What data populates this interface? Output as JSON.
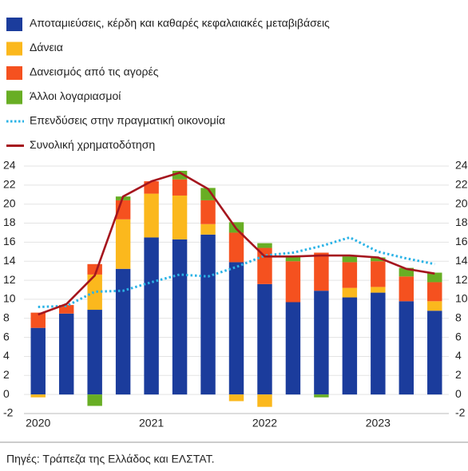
{
  "chart_data": {
    "type": "bar",
    "stacked": true,
    "categories": [
      "2020",
      null,
      null,
      null,
      "2021",
      null,
      null,
      null,
      "2022",
      null,
      null,
      null,
      "2023",
      null,
      null
    ],
    "series": [
      {
        "name": "Αποταμιεύσεις, κέρδη και καθαρές κεφαλαιακές μεταβιβάσεις",
        "color": "#1b3c9c",
        "type": "bar",
        "values": [
          7.0,
          8.5,
          8.9,
          13.2,
          16.5,
          16.3,
          16.8,
          13.9,
          11.6,
          9.7,
          10.9,
          10.2,
          10.7,
          9.8,
          8.8
        ]
      },
      {
        "name": "Δάνεια",
        "color": "#fbb81d",
        "type": "bar",
        "values": [
          -0.3,
          0,
          3.7,
          5.2,
          4.6,
          4.6,
          1.1,
          -0.7,
          -1.3,
          0,
          0,
          1.0,
          0.6,
          0,
          1.0
        ]
      },
      {
        "name": "Δανεισμός από τις αγορές",
        "color": "#f5511f",
        "type": "bar",
        "values": [
          1.6,
          0.9,
          1.1,
          2.0,
          1.3,
          1.7,
          2.5,
          3.1,
          3.8,
          4.3,
          4.0,
          2.7,
          2.7,
          2.6,
          2.0
        ]
      },
      {
        "name": "Άλλοι λογαριασμοί",
        "color": "#68ae24",
        "type": "bar",
        "values": [
          0,
          0,
          -1.2,
          0.4,
          0,
          0.9,
          1.3,
          1.1,
          0.5,
          0.5,
          -0.3,
          0.6,
          0.4,
          0.9,
          1.0
        ]
      },
      {
        "name": "Επενδύσεις στην πραγματική οικονομία",
        "color": "#2bb3e6",
        "type": "line",
        "style": "dotted",
        "values": [
          9.2,
          9.3,
          10.8,
          10.9,
          11.8,
          12.6,
          12.4,
          13.4,
          14.6,
          14.9,
          15.6,
          16.5,
          15.0,
          14.3,
          13.7
        ]
      },
      {
        "name": "Συνολική χρηματοδότηση",
        "color": "#a5161e",
        "type": "line",
        "style": "solid",
        "values": [
          8.4,
          9.5,
          12.5,
          20.8,
          22.4,
          23.3,
          21.6,
          17.4,
          14.5,
          14.5,
          14.6,
          14.6,
          14.4,
          13.2,
          12.7
        ]
      }
    ],
    "ylim": [
      -2,
      24
    ],
    "yticks": [
      -2,
      0,
      2,
      4,
      6,
      8,
      10,
      12,
      14,
      16,
      18,
      20,
      22,
      24
    ],
    "grid": true,
    "source": "Πηγές: Τράπεζα της Ελλάδος και ΕΛΣΤΑΤ."
  }
}
